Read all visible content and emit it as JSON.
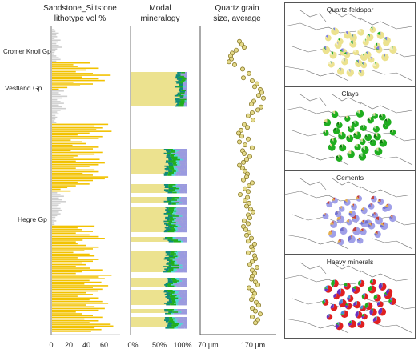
{
  "colors": {
    "sand": "#f2c200",
    "silt": "#cfcfcf",
    "modal_quartz": "#ece28f",
    "modal_clay": "#1fae1f",
    "modal_teal": "#0f8a7a",
    "modal_cyan": "#4fd6d6",
    "modal_cement": "#9a9ae0",
    "grain_fill": "#e3d98a",
    "grain_edge": "#8a7a2a",
    "map_frame": "#555555",
    "map_trace": "#6a6a6a"
  },
  "formations": [
    "Cromer Knoll Gp",
    "Vestland Gp",
    "Hegre Gp"
  ],
  "chart_data": [
    {
      "type": "bar",
      "orientation": "horizontal",
      "title": "Sandstone_Siltstone lithotype vol %",
      "title_lines": [
        "Sandstone_Siltstone",
        "lithotype vol %"
      ],
      "xlim": [
        0,
        80
      ],
      "xticks": [
        0,
        20,
        40,
        60
      ],
      "series": [
        {
          "name": "Sandstone",
          "values": [
            0,
            0,
            0,
            0,
            0,
            0,
            0,
            0,
            0,
            0,
            0,
            0,
            0,
            0,
            0,
            0,
            0,
            0,
            0,
            45,
            25,
            30,
            55,
            40,
            28,
            48,
            68,
            35,
            55,
            62,
            25,
            48,
            33,
            18,
            8,
            0,
            0,
            0,
            0,
            0,
            0,
            0,
            0,
            0,
            0,
            0,
            0,
            0,
            0,
            0,
            0,
            0,
            0,
            0,
            66,
            50,
            60,
            52,
            70,
            44,
            30,
            60,
            55,
            22,
            35,
            40,
            24,
            55,
            48,
            22,
            60,
            50,
            30,
            25,
            56,
            28,
            62,
            55,
            44,
            28,
            50,
            55,
            36,
            48,
            66,
            62,
            48,
            30,
            44,
            28,
            18,
            10,
            22,
            0,
            0,
            0,
            0,
            0,
            0,
            0,
            0,
            0,
            0,
            0,
            0,
            0,
            0,
            0,
            0,
            0,
            0,
            0,
            50,
            30,
            35,
            48,
            28,
            44,
            55,
            62,
            36,
            28,
            30,
            40,
            55,
            48,
            38,
            25,
            44,
            50,
            30,
            55,
            48,
            35,
            40,
            28,
            45,
            60,
            35,
            28,
            70,
            55,
            62,
            44,
            58,
            38,
            66,
            48,
            60,
            54,
            40,
            48,
            30,
            55,
            44,
            60,
            66,
            40,
            50,
            62,
            55,
            28,
            35,
            48,
            60,
            38,
            55,
            44,
            68,
            72,
            50,
            58,
            46
          ]
        },
        {
          "name": "Siltstone",
          "values": [
            3,
            4,
            8,
            5,
            6,
            3,
            10,
            7,
            5,
            8,
            12,
            6,
            4,
            3,
            2,
            5,
            8,
            10,
            5,
            0,
            0,
            0,
            0,
            0,
            0,
            0,
            0,
            0,
            0,
            0,
            0,
            0,
            0,
            0,
            0,
            14,
            8,
            10,
            18,
            12,
            6,
            10,
            14,
            8,
            12,
            16,
            10,
            6,
            8,
            4,
            6,
            4,
            3,
            5,
            0,
            0,
            0,
            0,
            0,
            0,
            0,
            0,
            0,
            0,
            0,
            0,
            0,
            0,
            0,
            0,
            0,
            0,
            0,
            0,
            0,
            0,
            0,
            0,
            0,
            0,
            0,
            0,
            0,
            0,
            0,
            0,
            0,
            0,
            0,
            0,
            0,
            0,
            0,
            6,
            10,
            14,
            8,
            12,
            16,
            10,
            8,
            6,
            10,
            12,
            8,
            10,
            6,
            4,
            3,
            5,
            2,
            3,
            0,
            0,
            0,
            0,
            0,
            0,
            0,
            0,
            0,
            0,
            0,
            0,
            0,
            0,
            0,
            0,
            0,
            0,
            0,
            0,
            0,
            0,
            0,
            0,
            0,
            0,
            0,
            0,
            0,
            0,
            0,
            0,
            0,
            0,
            0,
            0,
            0,
            0,
            0,
            0,
            0,
            0,
            0,
            0,
            0,
            0,
            0,
            0,
            0,
            0,
            0,
            0,
            0,
            0,
            0,
            0,
            0,
            0,
            0,
            0,
            0
          ]
        }
      ]
    },
    {
      "type": "area",
      "title": "Modal mineralogy",
      "title_lines": [
        "Modal",
        "mineralogy"
      ],
      "xticks": [
        "0%",
        "50%",
        "100%"
      ],
      "xlim": [
        0,
        100
      ]
    },
    {
      "type": "scatter",
      "title": "Quartz grain size, average",
      "title_lines": [
        "Quartz grain",
        "size, average"
      ],
      "xticks": [
        "70 µm",
        "170 µm"
      ],
      "xlim": [
        40,
        230
      ],
      "x": [
        138,
        144,
        150,
        130,
        120,
        116,
        118,
        112,
        126,
        146,
        162,
        148,
        170,
        182,
        176,
        190,
        194,
        186,
        198,
        174,
        168,
        192,
        184,
        170,
        160,
        172,
        150,
        158,
        142,
        136,
        144,
        160,
        138,
        152,
        170,
        146,
        150,
        164,
        156,
        148,
        138,
        146,
        152,
        158,
        156,
        148,
        170,
        162,
        152,
        160,
        140,
        158,
        152,
        162,
        156,
        166,
        172,
        160,
        164,
        150,
        160,
        148,
        154,
        162,
        156,
        168,
        160,
        176,
        168,
        172,
        160,
        176,
        178,
        170,
        164,
        182,
        170,
        176,
        170,
        168,
        178,
        184,
        162,
        170,
        176,
        172,
        168,
        180,
        186,
        170,
        178,
        190,
        170,
        184,
        178
      ],
      "y": [
        1,
        3,
        5,
        7,
        9,
        11,
        13,
        15,
        17,
        20,
        23,
        26,
        28,
        30,
        32,
        34,
        36,
        38,
        40,
        42,
        44,
        46,
        48,
        50,
        52,
        55,
        58,
        60,
        62,
        64,
        66,
        68,
        70,
        72,
        74,
        76,
        78,
        80,
        82,
        84,
        86,
        88,
        90,
        92,
        94,
        96,
        98,
        100,
        102,
        104,
        106,
        108,
        110,
        112,
        114,
        116,
        118,
        120,
        122,
        124,
        126,
        128,
        130,
        132,
        134,
        136,
        138,
        140,
        142,
        144,
        146,
        148,
        150,
        152,
        154,
        156,
        158,
        160,
        162,
        164,
        166,
        168,
        170,
        172,
        174,
        176,
        178,
        180,
        182,
        184,
        186,
        188,
        190,
        192,
        194
      ]
    }
  ],
  "maps": [
    {
      "title": "Quartz-feldspar",
      "slices": [
        "#ece28f",
        "#f6f0c4",
        "#1fae1f",
        "#7f7fe0"
      ]
    },
    {
      "title": "Clays",
      "slices": [
        "#1fae1f",
        "#0a7a0a",
        "#8fd68f",
        "#e3d98a"
      ]
    },
    {
      "title": "Cements",
      "slices": [
        "#a0a0e8",
        "#7070d0",
        "#e3b050",
        "#c04040"
      ]
    },
    {
      "title": "Heavy minerals",
      "slices": [
        "#e02020",
        "#6a30c0",
        "#1fae1f",
        "#4a8ad8"
      ]
    }
  ]
}
